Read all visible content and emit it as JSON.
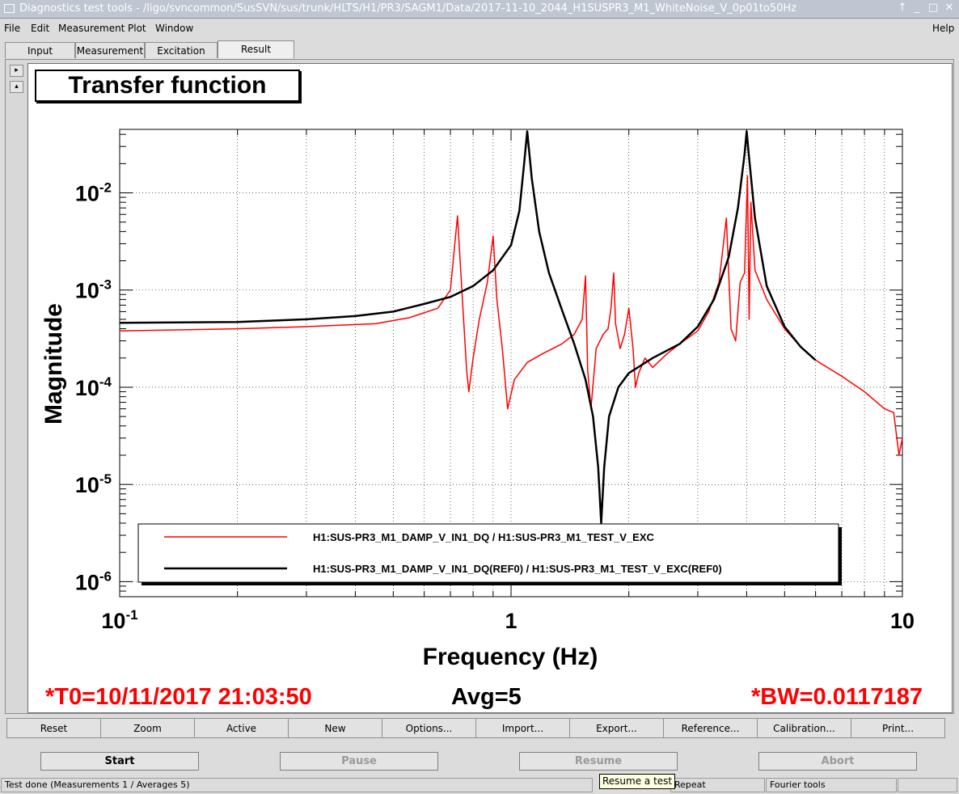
{
  "window": {
    "title": "Diagnostics test tools - /ligo/svncommon/SusSVN/sus/trunk/HLTS/H1/PR3/SAGM1/Data/2017-11-10_2044_H1SUSPR3_M1_WhiteNoise_V_0p01to50Hz",
    "btn_up": "↑",
    "btn_min": "_",
    "btn_max": "□",
    "btn_close": "✕"
  },
  "menu": {
    "file": "File",
    "edit": "Edit",
    "measurement": "Measurement",
    "plot": "Plot",
    "window": "Window",
    "help": "Help"
  },
  "tabs": {
    "input": "Input",
    "measurement": "Measurement",
    "excitation": "Excitation",
    "result": "Result"
  },
  "side": {
    "up": "▸",
    "down": "▴"
  },
  "plot_title": "Transfer function",
  "stats": {
    "t0": "*T0=10/11/2017 21:03:50",
    "avg": "Avg=5",
    "bw": "*BW=0.0117187"
  },
  "toolbar": {
    "reset": "Reset",
    "zoom": "Zoom",
    "active": "Active",
    "new": "New",
    "options": "Options...",
    "import": "Import...",
    "export": "Export...",
    "reference": "Reference...",
    "calibration": "Calibration...",
    "print": "Print..."
  },
  "controls": {
    "start": "Start",
    "pause": "Pause",
    "resume": "Resume",
    "abort": "Abort"
  },
  "status": {
    "message": "Test done (Measurements 1 / Averages 5)",
    "repeat": "Repeat",
    "fourier": "Fourier tools",
    "tooltip": "Resume a test"
  },
  "chart_data": {
    "type": "line",
    "xlabel": "Frequency (Hz)",
    "ylabel": "Magnitude",
    "xscale": "log",
    "yscale": "log",
    "xlim": [
      0.1,
      10
    ],
    "ylim": [
      7e-07,
      0.045
    ],
    "grid": true,
    "legend_placement": "bottom-center",
    "x_tick_labels": [
      {
        "value": 0.1,
        "base": "10",
        "exp": "-1"
      },
      {
        "value": 1,
        "base": "1",
        "exp": ""
      },
      {
        "value": 10,
        "base": "10",
        "exp": ""
      }
    ],
    "y_tick_labels": [
      {
        "value": 0.01,
        "base": "10",
        "exp": "-2"
      },
      {
        "value": 0.001,
        "base": "10",
        "exp": "-3"
      },
      {
        "value": 0.0001,
        "base": "10",
        "exp": "-4"
      },
      {
        "value": 1e-05,
        "base": "10",
        "exp": "-5"
      },
      {
        "value": 1e-06,
        "base": "10",
        "exp": "-6"
      }
    ],
    "series": [
      {
        "name": "H1:SUS-PR3_M1_DAMP_V_IN1_DQ / H1:SUS-PR3_M1_TEST_V_EXC",
        "color": "#ff0000",
        "points": [
          [
            0.1,
            0.00038
          ],
          [
            0.2,
            0.0004
          ],
          [
            0.3,
            0.00042
          ],
          [
            0.45,
            0.00045
          ],
          [
            0.55,
            0.00052
          ],
          [
            0.65,
            0.00065
          ],
          [
            0.7,
            0.001
          ],
          [
            0.73,
            0.0058
          ],
          [
            0.75,
            0.0009
          ],
          [
            0.77,
            0.00015
          ],
          [
            0.78,
            9e-05
          ],
          [
            0.8,
            0.0002
          ],
          [
            0.83,
            0.0005
          ],
          [
            0.87,
            0.0012
          ],
          [
            0.9,
            0.0036
          ],
          [
            0.92,
            0.0008
          ],
          [
            0.95,
            0.00025
          ],
          [
            0.98,
            6e-05
          ],
          [
            1.02,
            0.00012
          ],
          [
            1.1,
            0.00018
          ],
          [
            1.2,
            0.00022
          ],
          [
            1.35,
            0.00028
          ],
          [
            1.45,
            0.00035
          ],
          [
            1.52,
            0.0005
          ],
          [
            1.55,
            0.0014
          ],
          [
            1.57,
            0.00015
          ],
          [
            1.6,
            6e-05
          ],
          [
            1.65,
            0.00025
          ],
          [
            1.72,
            0.00035
          ],
          [
            1.77,
            0.0004
          ],
          [
            1.8,
            0.00065
          ],
          [
            1.83,
            0.0015
          ],
          [
            1.85,
            0.00045
          ],
          [
            1.9,
            0.00025
          ],
          [
            1.95,
            0.00035
          ],
          [
            2.0,
            0.00065
          ],
          [
            2.05,
            0.00025
          ],
          [
            2.08,
            0.0001
          ],
          [
            2.12,
            0.00014
          ],
          [
            2.2,
            0.0002
          ],
          [
            2.3,
            0.00016
          ],
          [
            2.5,
            0.00022
          ],
          [
            2.7,
            0.00028
          ],
          [
            3.0,
            0.00038
          ],
          [
            3.2,
            0.0006
          ],
          [
            3.4,
            0.0012
          ],
          [
            3.55,
            0.0055
          ],
          [
            3.65,
            0.0004
          ],
          [
            3.75,
            0.0003
          ],
          [
            3.85,
            0.0012
          ],
          [
            3.95,
            0.0015
          ],
          [
            4.02,
            0.015
          ],
          [
            4.06,
            0.0005
          ],
          [
            4.1,
            0.008
          ],
          [
            4.2,
            0.0016
          ],
          [
            4.5,
            0.0008
          ],
          [
            5.0,
            0.0004
          ],
          [
            5.5,
            0.00026
          ],
          [
            6.0,
            0.00019
          ],
          [
            7.0,
            0.00013
          ],
          [
            8.0,
            9e-05
          ],
          [
            9.0,
            6e-05
          ],
          [
            9.5,
            5.5e-05
          ],
          [
            9.8,
            2e-05
          ],
          [
            10,
            3e-05
          ]
        ]
      },
      {
        "name": "H1:SUS-PR3_M1_DAMP_V_IN1_DQ(REF0) / H1:SUS-PR3_M1_TEST_V_EXC(REF0)",
        "color": "#000000",
        "points": [
          [
            0.1,
            0.00046
          ],
          [
            0.2,
            0.00047
          ],
          [
            0.3,
            0.0005
          ],
          [
            0.4,
            0.00054
          ],
          [
            0.5,
            0.0006
          ],
          [
            0.6,
            0.00072
          ],
          [
            0.7,
            0.00085
          ],
          [
            0.8,
            0.0011
          ],
          [
            0.9,
            0.0016
          ],
          [
            1.0,
            0.0029
          ],
          [
            1.05,
            0.0065
          ],
          [
            1.08,
            0.02
          ],
          [
            1.1,
            0.043
          ],
          [
            1.13,
            0.014
          ],
          [
            1.18,
            0.004
          ],
          [
            1.25,
            0.0015
          ],
          [
            1.35,
            0.00062
          ],
          [
            1.45,
            0.00028
          ],
          [
            1.55,
            0.00012
          ],
          [
            1.62,
            5e-05
          ],
          [
            1.67,
            1.5e-05
          ],
          [
            1.7,
            4e-06
          ],
          [
            1.73,
            1.5e-05
          ],
          [
            1.78,
            5e-05
          ],
          [
            1.88,
            0.0001
          ],
          [
            2.0,
            0.00014
          ],
          [
            2.3,
            0.0002
          ],
          [
            2.7,
            0.00028
          ],
          [
            3.0,
            0.00042
          ],
          [
            3.3,
            0.0008
          ],
          [
            3.6,
            0.0022
          ],
          [
            3.8,
            0.007
          ],
          [
            3.95,
            0.025
          ],
          [
            4.0,
            0.043
          ],
          [
            4.05,
            0.025
          ],
          [
            4.2,
            0.0055
          ],
          [
            4.5,
            0.0011
          ],
          [
            5.0,
            0.00042
          ],
          [
            5.5,
            0.00026
          ],
          [
            6.0,
            0.00019
          ]
        ]
      }
    ]
  }
}
